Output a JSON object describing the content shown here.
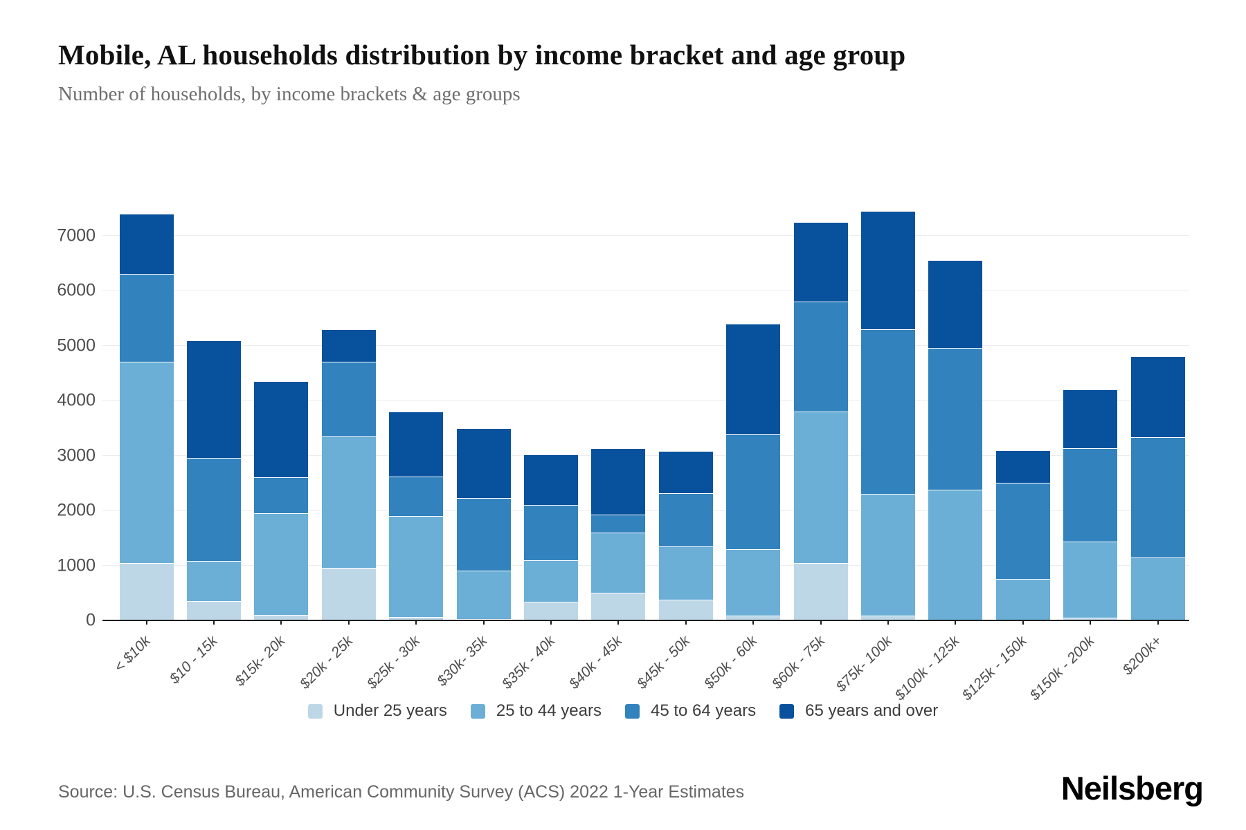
{
  "header": {
    "title": "Mobile, AL households distribution by income bracket and age group",
    "subtitle": "Number of households, by income brackets & age groups"
  },
  "footer": {
    "source": "Source: U.S. Census Bureau, American Community Survey (ACS) 2022 1-Year Estimates",
    "brand": "Neilsberg"
  },
  "chart_data": {
    "type": "bar",
    "stacked": true,
    "title": "Mobile, AL households distribution by income bracket and age group",
    "xlabel": "",
    "ylabel": "Number of households",
    "ylim": [
      0,
      7600
    ],
    "yticks": [
      0,
      1000,
      2000,
      3000,
      4000,
      5000,
      6000,
      7000
    ],
    "grid": "horizontal",
    "legend_position": "bottom",
    "categories": [
      "< $10k",
      "$10 - 15k",
      "$15k- 20k",
      "$20k - 25k",
      "$25k - 30k",
      "$30k- 35k",
      "$35k - 40k",
      "$40k - 45k",
      "$45k - 50k",
      "$50k - 60k",
      "$60k - 75k",
      "$75k- 100k",
      "$100k - 125k",
      "$125k - 150k",
      "$150k - 200k",
      "$200k+"
    ],
    "series": [
      {
        "name": "Under 25 years",
        "color": "#bdd7e7",
        "values": [
          1050,
          350,
          100,
          950,
          60,
          30,
          340,
          500,
          380,
          90,
          1050,
          90,
          0,
          0,
          50,
          0
        ]
      },
      {
        "name": "25 to 44 years",
        "color": "#6baed6",
        "values": [
          3650,
          730,
          1850,
          2400,
          1840,
          870,
          760,
          1100,
          970,
          1210,
          2750,
          2210,
          2380,
          750,
          1380,
          1150
        ]
      },
      {
        "name": "45 to 64 years",
        "color": "#3182bd",
        "values": [
          1600,
          1870,
          650,
          1350,
          720,
          1330,
          1000,
          330,
          970,
          2080,
          2000,
          3000,
          2570,
          1750,
          1700,
          2180
        ]
      },
      {
        "name": "65 years and over",
        "color": "#08519c",
        "values": [
          1100,
          2150,
          1750,
          600,
          1180,
          1270,
          920,
          1200,
          760,
          2020,
          1450,
          2150,
          1600,
          600,
          1070,
          1470
        ]
      }
    ],
    "totals": [
      7400,
      5100,
      4350,
      5300,
      3800,
      3500,
      3020,
      3130,
      3080,
      5400,
      7250,
      7450,
      6550,
      3100,
      4200,
      4800
    ]
  }
}
